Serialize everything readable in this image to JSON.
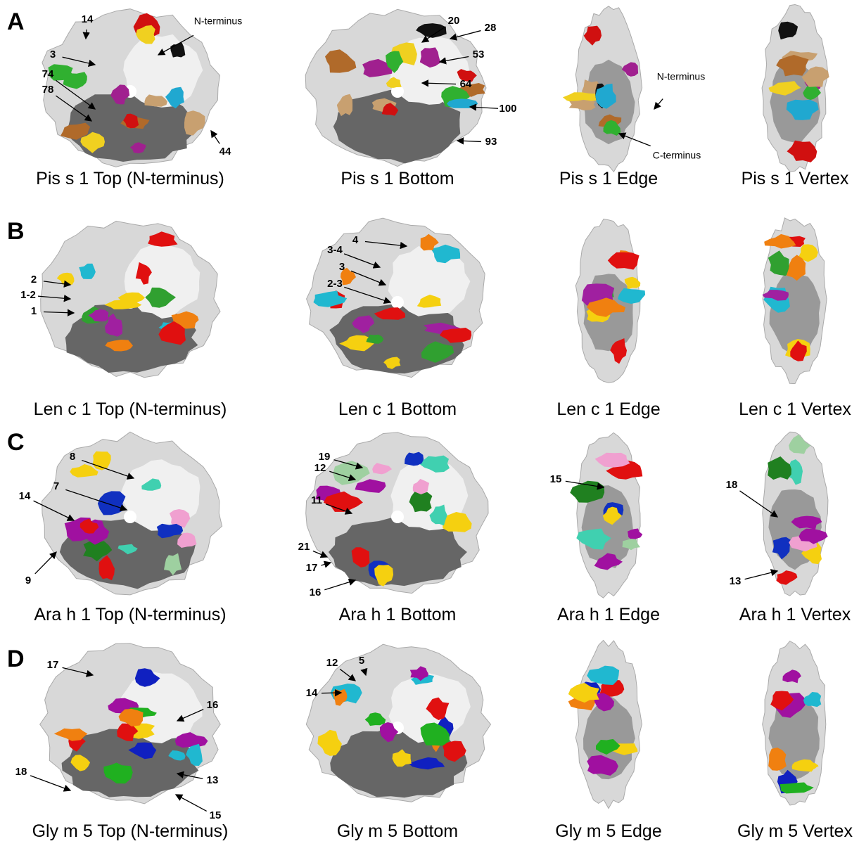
{
  "panels": [
    {
      "letter": "A",
      "views": [
        {
          "caption": "Pis s 1 Top (N-terminus)",
          "labels": [
            "14",
            "N-terminus",
            "3",
            "74",
            "78",
            "44"
          ]
        },
        {
          "caption": "Pis s 1 Bottom",
          "labels": [
            "20",
            "28",
            "53",
            "64",
            "100",
            "93"
          ]
        },
        {
          "caption": "Pis s 1 Edge",
          "labels": [
            "N-terminus",
            "C-terminus"
          ]
        },
        {
          "caption": "Pis s 1 Vertex",
          "labels": []
        }
      ]
    },
    {
      "letter": "B",
      "views": [
        {
          "caption": "Len c 1 Top (N-terminus)",
          "labels": [
            "2",
            "1-2",
            "1"
          ]
        },
        {
          "caption": "Len c 1 Bottom",
          "labels": [
            "4",
            "3-4",
            "3",
            "2-3"
          ]
        },
        {
          "caption": "Len c 1 Edge",
          "labels": []
        },
        {
          "caption": "Len c 1 Vertex",
          "labels": []
        }
      ]
    },
    {
      "letter": "C",
      "views": [
        {
          "caption": "Ara h 1 Top (N-terminus)",
          "labels": [
            "8",
            "7",
            "14",
            "9"
          ]
        },
        {
          "caption": "Ara h 1 Bottom",
          "labels": [
            "19",
            "12",
            "11",
            "21",
            "17",
            "16"
          ]
        },
        {
          "caption": "Ara h 1 Edge",
          "labels": [
            "15"
          ]
        },
        {
          "caption": "Ara h 1 Vertex",
          "labels": [
            "18",
            "13"
          ]
        }
      ]
    },
    {
      "letter": "D",
      "views": [
        {
          "caption": "Gly m 5 Top (N-terminus)",
          "labels": [
            "17",
            "16",
            "18",
            "13",
            "15"
          ]
        },
        {
          "caption": "Gly m 5 Bottom",
          "labels": [
            "12",
            "5",
            "14"
          ]
        },
        {
          "caption": "Gly m 5 Edge",
          "labels": []
        },
        {
          "caption": "Gly m 5 Vertex",
          "labels": []
        }
      ]
    }
  ]
}
